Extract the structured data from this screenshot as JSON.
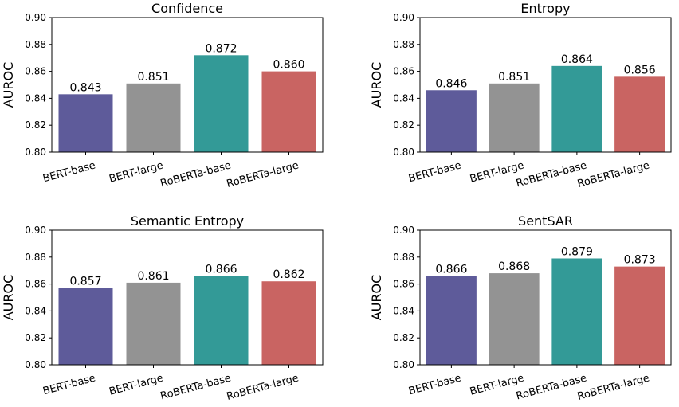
{
  "chart_data": [
    {
      "type": "bar",
      "title": "Confidence",
      "ylabel": "AUROC",
      "xlabel": "",
      "categories": [
        "BERT-base",
        "BERT-large",
        "RoBERTa-base",
        "RoBERTa-large"
      ],
      "values": [
        0.843,
        0.851,
        0.872,
        0.86
      ],
      "value_labels": [
        "0.843",
        "0.851",
        "0.872",
        "0.860"
      ],
      "colors": [
        "#5e5b9a",
        "#939393",
        "#339a97",
        "#c96462"
      ],
      "ylim": [
        0.8,
        0.9
      ],
      "yticks": [
        "0.80",
        "0.82",
        "0.84",
        "0.86",
        "0.88",
        "0.90"
      ],
      "grid": false
    },
    {
      "type": "bar",
      "title": "Entropy",
      "ylabel": "AUROC",
      "xlabel": "",
      "categories": [
        "BERT-base",
        "BERT-large",
        "RoBERTa-base",
        "RoBERTa-large"
      ],
      "values": [
        0.846,
        0.851,
        0.864,
        0.856
      ],
      "value_labels": [
        "0.846",
        "0.851",
        "0.864",
        "0.856"
      ],
      "colors": [
        "#5e5b9a",
        "#939393",
        "#339a97",
        "#c96462"
      ],
      "ylim": [
        0.8,
        0.9
      ],
      "yticks": [
        "0.80",
        "0.82",
        "0.84",
        "0.86",
        "0.88",
        "0.90"
      ],
      "grid": false
    },
    {
      "type": "bar",
      "title": "Semantic Entropy",
      "ylabel": "AUROC",
      "xlabel": "",
      "categories": [
        "BERT-base",
        "BERT-large",
        "RoBERTa-base",
        "RoBERTa-large"
      ],
      "values": [
        0.857,
        0.861,
        0.866,
        0.862
      ],
      "value_labels": [
        "0.857",
        "0.861",
        "0.866",
        "0.862"
      ],
      "colors": [
        "#5e5b9a",
        "#939393",
        "#339a97",
        "#c96462"
      ],
      "ylim": [
        0.8,
        0.9
      ],
      "yticks": [
        "0.80",
        "0.82",
        "0.84",
        "0.86",
        "0.88",
        "0.90"
      ],
      "grid": false
    },
    {
      "type": "bar",
      "title": "SentSAR",
      "ylabel": "AUROC",
      "xlabel": "",
      "categories": [
        "BERT-base",
        "BERT-large",
        "RoBERTa-base",
        "RoBERTa-large"
      ],
      "values": [
        0.866,
        0.868,
        0.879,
        0.873
      ],
      "value_labels": [
        "0.866",
        "0.868",
        "0.879",
        "0.873"
      ],
      "colors": [
        "#5e5b9a",
        "#939393",
        "#339a97",
        "#c96462"
      ],
      "ylim": [
        0.8,
        0.9
      ],
      "yticks": [
        "0.80",
        "0.82",
        "0.84",
        "0.86",
        "0.88",
        "0.90"
      ],
      "grid": false
    }
  ]
}
